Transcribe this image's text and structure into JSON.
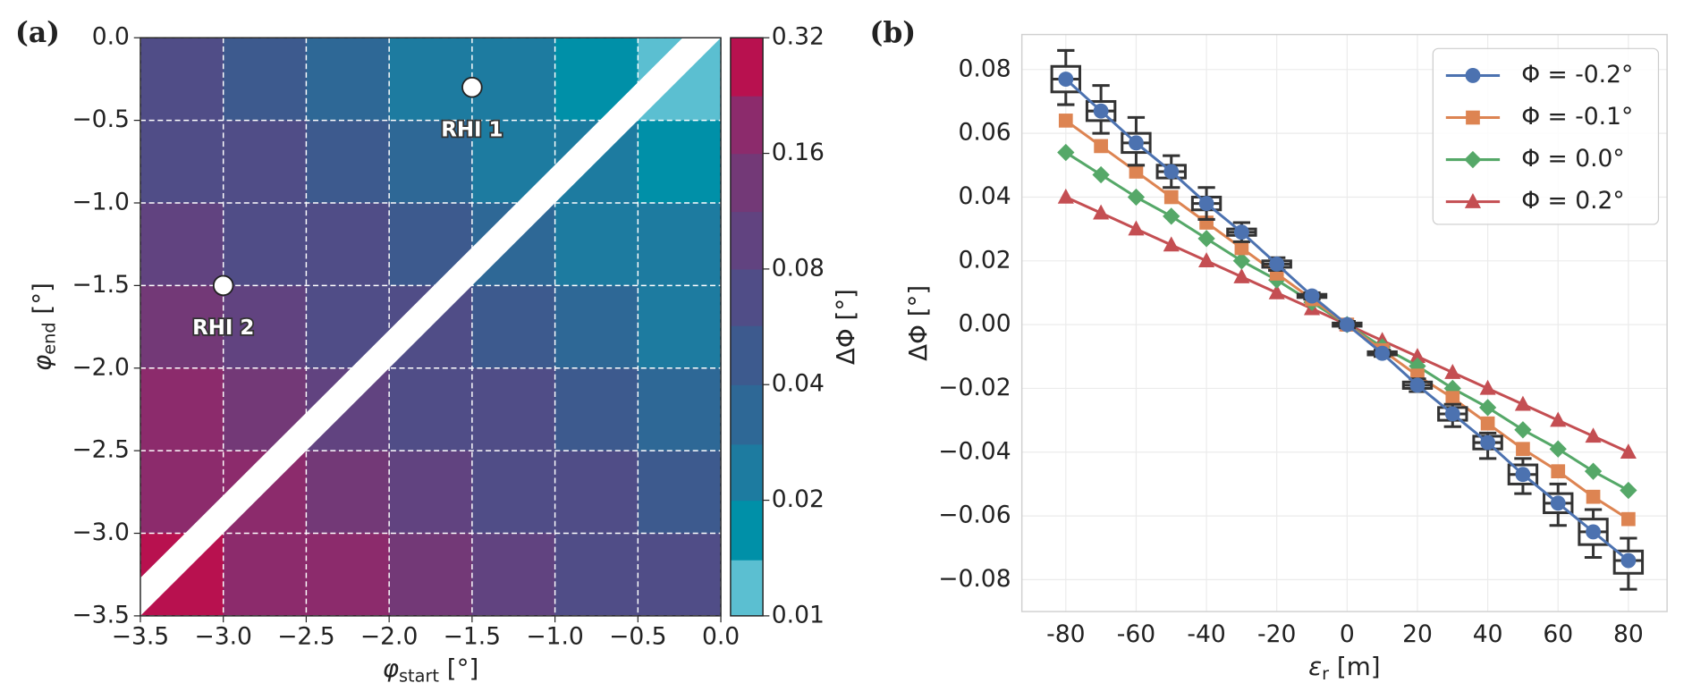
{
  "chart_data": [
    {
      "type": "contour",
      "panel_label": "(a)",
      "xlabel": {
        "symbol": "φ",
        "subscript": "start",
        "unit": " [°]"
      },
      "ylabel": {
        "symbol": "φ",
        "subscript": "end",
        "unit": " [°]"
      },
      "x": [
        -3.25,
        -2.75,
        -2.25,
        -1.75,
        -1.25,
        -0.75,
        -0.25
      ],
      "y": [
        -0.25,
        -0.75,
        -1.25,
        -1.75,
        -2.25,
        -2.75,
        -3.25
      ],
      "z": [
        [
          0.062,
          0.048,
          0.037,
          0.028,
          0.022,
          0.017,
          0.013
        ],
        [
          0.08,
          0.062,
          0.048,
          0.037,
          0.028,
          0.022,
          0.017
        ],
        [
          0.104,
          0.08,
          0.062,
          0.048,
          0.037,
          0.028,
          0.022
        ],
        [
          0.135,
          0.104,
          0.08,
          0.062,
          0.048,
          0.037,
          0.028
        ],
        [
          0.174,
          0.135,
          0.104,
          0.08,
          0.062,
          0.048,
          0.037
        ],
        [
          0.226,
          0.174,
          0.135,
          0.104,
          0.08,
          0.062,
          0.048
        ],
        [
          0.293,
          0.226,
          0.174,
          0.135,
          0.104,
          0.08,
          0.062
        ]
      ],
      "xlim": [
        -3.5,
        0
      ],
      "ylim": [
        -3.5,
        0
      ],
      "xticks": [
        {
          "value": -3.5,
          "label": "−3.5"
        },
        {
          "value": -3.0,
          "label": "−3.0"
        },
        {
          "value": -2.5,
          "label": "−2.5"
        },
        {
          "value": -2.0,
          "label": "−2.0"
        },
        {
          "value": -1.5,
          "label": "−1.5"
        },
        {
          "value": -1.0,
          "label": "−1.0"
        },
        {
          "value": -0.5,
          "label": "−0.5"
        },
        {
          "value": 0,
          "label": "0.0"
        }
      ],
      "yticks": [
        {
          "value": -3.5,
          "label": "−3.5"
        },
        {
          "value": -3.0,
          "label": "−3.0"
        },
        {
          "value": -2.5,
          "label": "−2.5"
        },
        {
          "value": -2.0,
          "label": "−2.0"
        },
        {
          "value": -1.5,
          "label": "−1.5"
        },
        {
          "value": -1.0,
          "label": "−1.0"
        },
        {
          "value": -0.5,
          "label": "−0.5"
        },
        {
          "value": 0,
          "label": "0.0"
        }
      ],
      "grid": true,
      "points": [
        {
          "label": "RHI 1",
          "x": -1.5,
          "y": -0.3
        },
        {
          "label": "RHI 2",
          "x": -3.0,
          "y": -1.5
        }
      ],
      "colorbar": {
        "label": "ΔΦ [°]",
        "scale": "log",
        "lim": [
          0.01,
          0.32
        ],
        "ticks": [
          0.01,
          0.02,
          0.04,
          0.08,
          0.16,
          0.32
        ],
        "levels": [
          0.01,
          0.014,
          0.02,
          0.028,
          0.04,
          0.057,
          0.08,
          0.113,
          0.16,
          0.226,
          0.32
        ],
        "colors": [
          "#5bbfd1",
          "#0090a8",
          "#1d7ba0",
          "#2e6896",
          "#3d5a8e",
          "#504d87",
          "#614380",
          "#733977",
          "#8c2b6c",
          "#b8114f"
        ]
      }
    },
    {
      "type": "line",
      "panel_label": "(b)",
      "xlabel": {
        "symbol": "ε",
        "subscript": "r",
        "unit": " [m]"
      },
      "ylabel": "ΔΦ [°]",
      "x": [
        -80,
        -70,
        -60,
        -50,
        -40,
        -30,
        -20,
        -10,
        0,
        10,
        20,
        30,
        40,
        50,
        60,
        70,
        80
      ],
      "series": [
        {
          "name": "Φ = -0.2°",
          "color": "#4c72b0",
          "marker": "circle",
          "values": [
            0.077,
            0.067,
            0.057,
            0.048,
            0.038,
            0.029,
            0.019,
            0.009,
            0,
            -0.009,
            -0.019,
            -0.028,
            -0.037,
            -0.047,
            -0.056,
            -0.065,
            -0.074
          ]
        },
        {
          "name": "Φ = -0.1°",
          "color": "#dd8452",
          "marker": "square",
          "values": [
            0.064,
            0.056,
            0.048,
            0.04,
            0.032,
            0.024,
            0.016,
            0.008,
            0,
            -0.008,
            -0.016,
            -0.023,
            -0.031,
            -0.039,
            -0.046,
            -0.054,
            -0.061
          ]
        },
        {
          "name": "Φ = 0.0°",
          "color": "#55a868",
          "marker": "diamond",
          "values": [
            0.054,
            0.047,
            0.04,
            0.034,
            0.027,
            0.02,
            0.014,
            0.007,
            0,
            -0.007,
            -0.013,
            -0.02,
            -0.026,
            -0.033,
            -0.039,
            -0.046,
            -0.052
          ]
        },
        {
          "name": "Φ = 0.2°",
          "color": "#c44e52",
          "marker": "triangle",
          "values": [
            0.04,
            0.035,
            0.03,
            0.025,
            0.02,
            0.015,
            0.01,
            0.005,
            0,
            -0.005,
            -0.01,
            -0.015,
            -0.02,
            -0.025,
            -0.03,
            -0.035,
            -0.04
          ]
        }
      ],
      "boxes": {
        "whishi": [
          0.086,
          0.075,
          0.065,
          0.053,
          0.043,
          0.032,
          0.021,
          0.01,
          0.001,
          -0.008,
          -0.017,
          -0.025,
          -0.034,
          -0.042,
          -0.05,
          -0.058,
          -0.067
        ],
        "q3": [
          0.081,
          0.07,
          0.06,
          0.05,
          0.04,
          0.03,
          0.02,
          0.0095,
          0.0005,
          -0.0085,
          -0.018,
          -0.026,
          -0.035,
          -0.044,
          -0.053,
          -0.061,
          -0.071
        ],
        "q1": [
          0.073,
          0.064,
          0.054,
          0.046,
          0.036,
          0.028,
          0.018,
          0.0085,
          -0.0005,
          -0.0095,
          -0.02,
          -0.03,
          -0.039,
          -0.05,
          -0.059,
          -0.069,
          -0.078
        ],
        "whislo": [
          0.069,
          0.06,
          0.05,
          0.043,
          0.033,
          0.026,
          0.017,
          0.008,
          -0.001,
          -0.01,
          -0.021,
          -0.032,
          -0.042,
          -0.053,
          -0.063,
          -0.073,
          -0.083
        ]
      },
      "xlim": [
        -92.5,
        91
      ],
      "ylim": [
        -0.09,
        0.091
      ],
      "xticks": [
        -80,
        -60,
        -40,
        -20,
        0,
        20,
        40,
        60,
        80
      ],
      "yticks": [
        {
          "value": -0.08,
          "label": "−0.08"
        },
        {
          "value": -0.06,
          "label": "−0.06"
        },
        {
          "value": -0.04,
          "label": "−0.04"
        },
        {
          "value": -0.02,
          "label": "−0.02"
        },
        {
          "value": 0,
          "label": "0.00"
        },
        {
          "value": 0.02,
          "label": "0.02"
        },
        {
          "value": 0.04,
          "label": "0.04"
        },
        {
          "value": 0.06,
          "label": "0.06"
        },
        {
          "value": 0.08,
          "label": "0.08"
        }
      ],
      "grid": true,
      "legend": "upper right"
    }
  ]
}
